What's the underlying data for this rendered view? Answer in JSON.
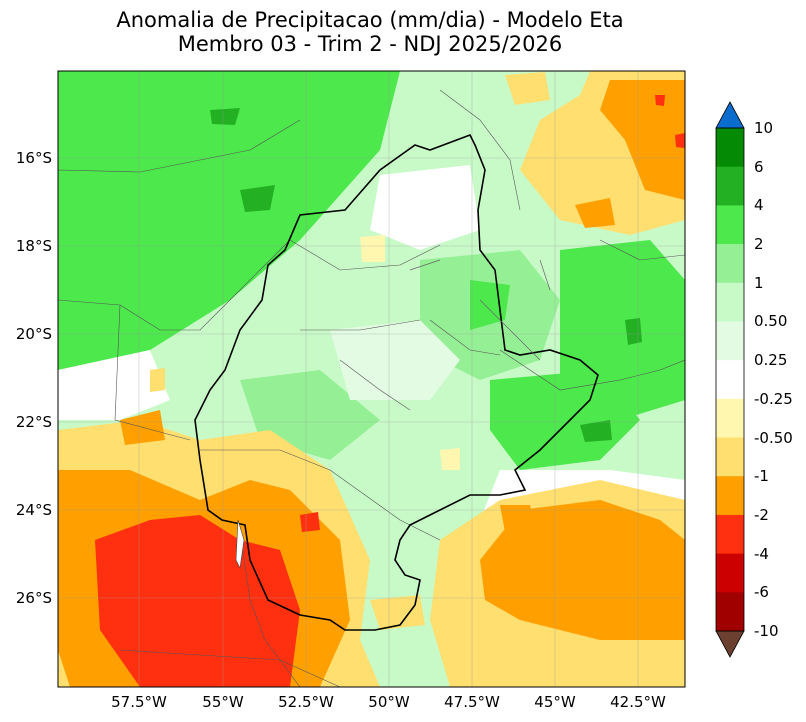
{
  "title_line1": "Anomalia de Precipitacao (mm/dia) - Modelo Eta",
  "title_line2": "Membro 03 - Trim 2 - NDJ 2025/2026",
  "lat_labels": [
    "16°S",
    "18°S",
    "20°S",
    "22°S",
    "24°S",
    "26°S"
  ],
  "lon_labels": [
    "57.5°W",
    "55°W",
    "52.5°W",
    "50°W",
    "47.5°W",
    "45°W",
    "42.5°W"
  ],
  "colorbar": {
    "labels": [
      "10",
      "6",
      "4",
      "2",
      "1",
      "0.50",
      "0.25",
      "-0.25",
      "-0.50",
      "-1",
      "-2",
      "-4",
      "-6",
      "-10"
    ],
    "colors": [
      "#0a6ccc",
      "#058a05",
      "#23b023",
      "#4ce84c",
      "#95f095",
      "#c8fac8",
      "#e3fbe3",
      "#ffffff",
      "#fff7b0",
      "#ffdf70",
      "#ffa000",
      "#ff3010",
      "#cc0000",
      "#a00000",
      "#6b4030"
    ]
  }
}
